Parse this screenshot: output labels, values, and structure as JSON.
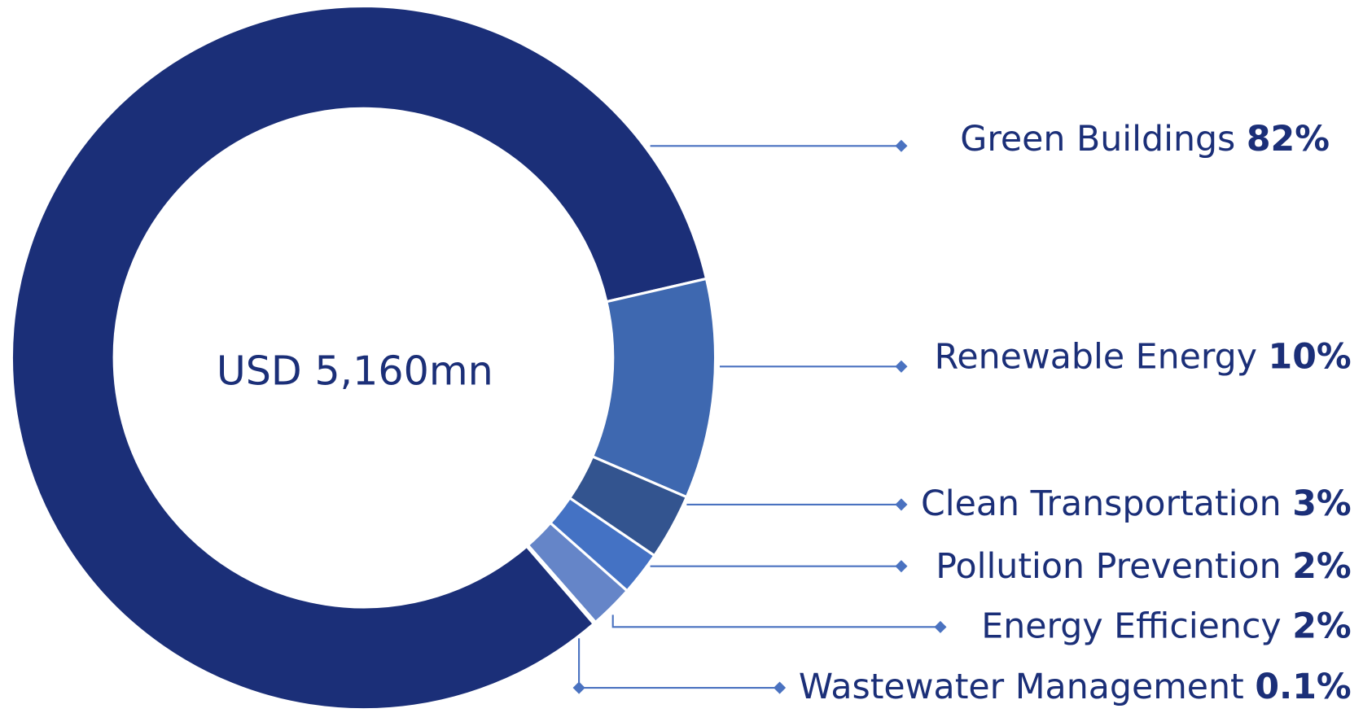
{
  "chart_data": {
    "type": "pie",
    "center_label": "USD 5,160mn",
    "categories": [
      "Green Buildings",
      "Renewable Energy",
      "Clean Transportation",
      "Pollution Prevention",
      "Energy Efficiency",
      "Wastewater Management"
    ],
    "values": [
      82,
      10,
      3,
      2,
      2,
      0.1
    ],
    "value_labels": [
      "82%",
      "10%",
      "3%",
      "2%",
      "2%",
      "0.1%"
    ],
    "colors": [
      "#1b2f78",
      "#3e68b0",
      "#33548f",
      "#4472c4",
      "#6585c8",
      "#5b7cc4"
    ]
  }
}
